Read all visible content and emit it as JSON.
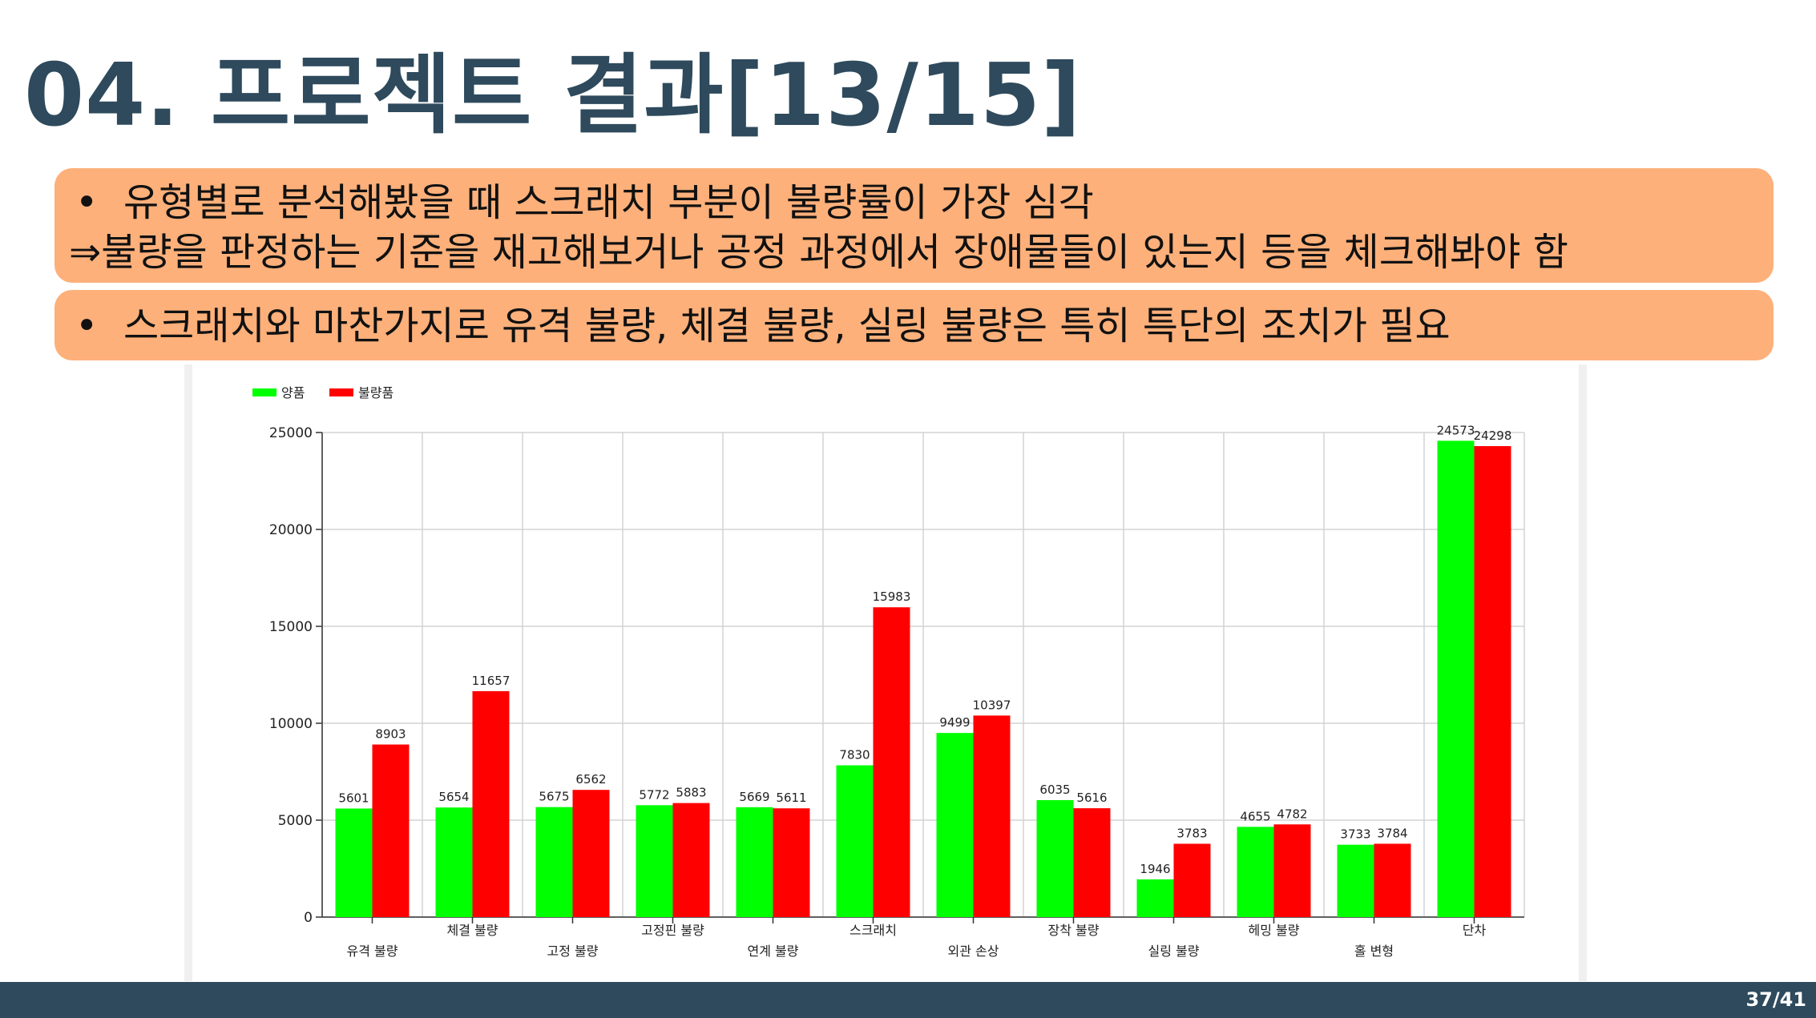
{
  "slide": {
    "title": "04. 프로젝트 결과[13/15]",
    "page": "37/41"
  },
  "notes": {
    "box1_line1_bullet": "•",
    "box1_line1": "유형별로 분석해봤을 때 스크래치 부분이 불량률이 가장 심각",
    "box1_line2_arrow": "⇒",
    "box1_line2": "불량을 판정하는 기준을 재고해보거나 공정 과정에서 장애물들이 있는지 등을 체크해봐야 함",
    "box2_line1_bullet": "•",
    "box2_line1": "스크래치와 마찬가지로 유격 불량, 체결 불량, 실링 불량은 특히 특단의 조치가 필요"
  },
  "chart_data": {
    "type": "bar",
    "title": "",
    "xlabel": "",
    "ylabel": "",
    "categories": [
      "유격 불량",
      "체결 불량",
      "고정 불량",
      "고정핀 불량",
      "연계 불량",
      "스크래치",
      "외관 손상",
      "장착 불량",
      "실링 불량",
      "헤밍 불량",
      "홀 변형",
      "단차"
    ],
    "series": [
      {
        "name": "양품",
        "color": "#00ff00",
        "values": [
          5601,
          5654,
          5675,
          5772,
          5669,
          7830,
          9499,
          6035,
          1946,
          4655,
          3733,
          24573
        ]
      },
      {
        "name": "불량품",
        "color": "#ff0000",
        "values": [
          8903,
          11657,
          6562,
          5883,
          5611,
          15983,
          10397,
          5616,
          3783,
          4782,
          3784,
          24298
        ]
      }
    ],
    "ylim": [
      0,
      25000
    ],
    "yticks": [
      0,
      5000,
      10000,
      15000,
      20000,
      25000
    ],
    "grid": true,
    "legend": "top-left",
    "data_labels": true
  }
}
